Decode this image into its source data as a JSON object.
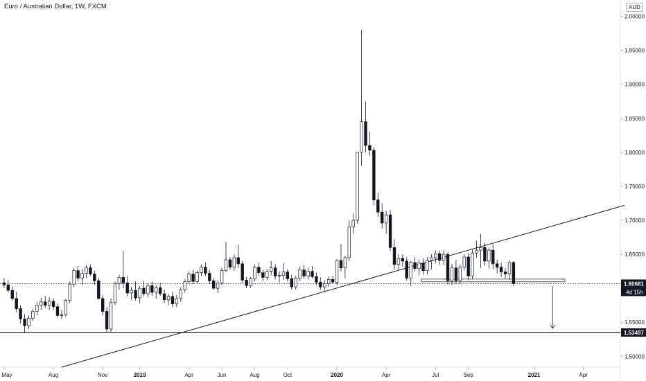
{
  "title": "Euro / Australian Dollar, 1W, FXCM",
  "currency": "AUD",
  "chart_data": {
    "type": "candlestick",
    "y_ticks": [
      "2.00000",
      "1.95000",
      "1.90000",
      "1.85000",
      "1.80000",
      "1.75000",
      "1.70000",
      "1.65000",
      "1.60000",
      "1.55000",
      "1.50000"
    ],
    "y_tick_values": [
      2.0,
      1.95,
      1.9,
      1.85,
      1.8,
      1.75,
      1.7,
      1.65,
      1.6,
      1.55,
      1.5
    ],
    "x_ticks": [
      "May",
      "Aug",
      "Nov",
      "2019",
      "Apr",
      "Jun",
      "Aug",
      "Oct",
      "2020",
      "Apr",
      "Jul",
      "Sep",
      "2021",
      "Apr"
    ],
    "x_tick_week": [
      0,
      12,
      24,
      33,
      45,
      53,
      61,
      69,
      81,
      93,
      105,
      113,
      129,
      141
    ],
    "ylim": [
      1.484,
      2.024
    ],
    "x_range_weeks": [
      -1,
      150
    ],
    "price_label": "1.60681",
    "price_value": 1.60681,
    "countdown_label": "4d 15h",
    "support_label": "1.53497",
    "support_value": 1.53497,
    "trendlines": [
      {
        "name": "rising-trendline",
        "w1": 14,
        "p1": 1.484,
        "w2": 151,
        "p2": 1.722
      }
    ],
    "consolidation_box": {
      "w1": 101.5,
      "w2": 136.5,
      "top": 1.6135,
      "bottom": 1.6095
    },
    "arrow": {
      "week": 133.5,
      "from": 1.603,
      "to": 1.541
    },
    "candles": [
      [
        1.608,
        1.615,
        1.6,
        1.605
      ],
      [
        1.605,
        1.612,
        1.594,
        1.597
      ],
      [
        1.597,
        1.603,
        1.582,
        1.585
      ],
      [
        1.585,
        1.595,
        1.565,
        1.57
      ],
      [
        1.57,
        1.575,
        1.548,
        1.555
      ],
      [
        1.555,
        1.562,
        1.534,
        1.545
      ],
      [
        1.545,
        1.56,
        1.54,
        1.556
      ],
      [
        1.556,
        1.57,
        1.552,
        1.566
      ],
      [
        1.566,
        1.58,
        1.56,
        1.575
      ],
      [
        1.575,
        1.586,
        1.568,
        1.58
      ],
      [
        1.58,
        1.589,
        1.571,
        1.575
      ],
      [
        1.575,
        1.587,
        1.568,
        1.581
      ],
      [
        1.581,
        1.585,
        1.568,
        1.573
      ],
      [
        1.573,
        1.578,
        1.557,
        1.56
      ],
      [
        1.56,
        1.568,
        1.555,
        1.561
      ],
      [
        1.561,
        1.585,
        1.558,
        1.582
      ],
      [
        1.582,
        1.61,
        1.578,
        1.606
      ],
      [
        1.606,
        1.63,
        1.602,
        1.626
      ],
      [
        1.626,
        1.633,
        1.61,
        1.615
      ],
      [
        1.615,
        1.628,
        1.605,
        1.622
      ],
      [
        1.622,
        1.634,
        1.615,
        1.63
      ],
      [
        1.63,
        1.635,
        1.618,
        1.621
      ],
      [
        1.621,
        1.626,
        1.605,
        1.611
      ],
      [
        1.611,
        1.615,
        1.583,
        1.585
      ],
      [
        1.585,
        1.59,
        1.56,
        1.566
      ],
      [
        1.566,
        1.572,
        1.535,
        1.54
      ],
      [
        1.54,
        1.585,
        1.536,
        1.579
      ],
      [
        1.579,
        1.61,
        1.575,
        1.607
      ],
      [
        1.607,
        1.62,
        1.598,
        1.616
      ],
      [
        1.616,
        1.655,
        1.6,
        1.608
      ],
      [
        1.608,
        1.618,
        1.588,
        1.593
      ],
      [
        1.593,
        1.602,
        1.583,
        1.597
      ],
      [
        1.597,
        1.61,
        1.582,
        1.586
      ],
      [
        1.586,
        1.603,
        1.578,
        1.6
      ],
      [
        1.6,
        1.611,
        1.588,
        1.592
      ],
      [
        1.592,
        1.607,
        1.587,
        1.604
      ],
      [
        1.604,
        1.61,
        1.589,
        1.594
      ],
      [
        1.594,
        1.605,
        1.585,
        1.601
      ],
      [
        1.601,
        1.608,
        1.589,
        1.592
      ],
      [
        1.592,
        1.598,
        1.578,
        1.583
      ],
      [
        1.583,
        1.592,
        1.575,
        1.588
      ],
      [
        1.588,
        1.595,
        1.572,
        1.577
      ],
      [
        1.577,
        1.59,
        1.572,
        1.585
      ],
      [
        1.585,
        1.602,
        1.58,
        1.598
      ],
      [
        1.598,
        1.613,
        1.594,
        1.61
      ],
      [
        1.61,
        1.625,
        1.607,
        1.621
      ],
      [
        1.621,
        1.627,
        1.606,
        1.61
      ],
      [
        1.61,
        1.626,
        1.606,
        1.623
      ],
      [
        1.623,
        1.635,
        1.618,
        1.631
      ],
      [
        1.631,
        1.638,
        1.618,
        1.622
      ],
      [
        1.622,
        1.627,
        1.606,
        1.611
      ],
      [
        1.611,
        1.615,
        1.598,
        1.6
      ],
      [
        1.6,
        1.612,
        1.593,
        1.608
      ],
      [
        1.608,
        1.63,
        1.604,
        1.626
      ],
      [
        1.626,
        1.668,
        1.624,
        1.642
      ],
      [
        1.642,
        1.646,
        1.627,
        1.631
      ],
      [
        1.631,
        1.65,
        1.626,
        1.645
      ],
      [
        1.645,
        1.664,
        1.63,
        1.636
      ],
      [
        1.636,
        1.64,
        1.608,
        1.612
      ],
      [
        1.612,
        1.617,
        1.6,
        1.604
      ],
      [
        1.604,
        1.617,
        1.6,
        1.614
      ],
      [
        1.614,
        1.635,
        1.61,
        1.631
      ],
      [
        1.631,
        1.638,
        1.619,
        1.623
      ],
      [
        1.623,
        1.627,
        1.611,
        1.616
      ],
      [
        1.616,
        1.628,
        1.612,
        1.625
      ],
      [
        1.625,
        1.64,
        1.619,
        1.63
      ],
      [
        1.63,
        1.635,
        1.613,
        1.618
      ],
      [
        1.618,
        1.625,
        1.609,
        1.619
      ],
      [
        1.619,
        1.637,
        1.612,
        1.624
      ],
      [
        1.624,
        1.628,
        1.61,
        1.614
      ],
      [
        1.614,
        1.62,
        1.598,
        1.602
      ],
      [
        1.602,
        1.618,
        1.598,
        1.615
      ],
      [
        1.615,
        1.632,
        1.611,
        1.627
      ],
      [
        1.627,
        1.634,
        1.614,
        1.618
      ],
      [
        1.618,
        1.63,
        1.613,
        1.625
      ],
      [
        1.625,
        1.633,
        1.614,
        1.617
      ],
      [
        1.617,
        1.623,
        1.605,
        1.609
      ],
      [
        1.609,
        1.616,
        1.598,
        1.602
      ],
      [
        1.602,
        1.612,
        1.596,
        1.607
      ],
      [
        1.607,
        1.617,
        1.602,
        1.613
      ],
      [
        1.613,
        1.618,
        1.606,
        1.609
      ],
      [
        1.609,
        1.643,
        1.605,
        1.641
      ],
      [
        1.641,
        1.665,
        1.625,
        1.63
      ],
      [
        1.63,
        1.648,
        1.615,
        1.645
      ],
      [
        1.645,
        1.7,
        1.64,
        1.69
      ],
      [
        1.69,
        1.71,
        1.68,
        1.7
      ],
      [
        1.7,
        1.8,
        1.695,
        1.8
      ],
      [
        1.8,
        1.98,
        1.78,
        1.845
      ],
      [
        1.845,
        1.875,
        1.8,
        1.81
      ],
      [
        1.81,
        1.83,
        1.795,
        1.803
      ],
      [
        1.803,
        1.808,
        1.722,
        1.73
      ],
      [
        1.73,
        1.74,
        1.705,
        1.712
      ],
      [
        1.712,
        1.725,
        1.688,
        1.696
      ],
      [
        1.696,
        1.714,
        1.68,
        1.708
      ],
      [
        1.708,
        1.715,
        1.655,
        1.66
      ],
      [
        1.66,
        1.672,
        1.627,
        1.635
      ],
      [
        1.635,
        1.65,
        1.628,
        1.644
      ],
      [
        1.644,
        1.65,
        1.632,
        1.64
      ],
      [
        1.64,
        1.646,
        1.611,
        1.615
      ],
      [
        1.615,
        1.64,
        1.603,
        1.638
      ],
      [
        1.638,
        1.646,
        1.625,
        1.629
      ],
      [
        1.629,
        1.642,
        1.619,
        1.637
      ],
      [
        1.637,
        1.644,
        1.62,
        1.626
      ],
      [
        1.626,
        1.646,
        1.62,
        1.641
      ],
      [
        1.641,
        1.65,
        1.628,
        1.645
      ],
      [
        1.645,
        1.656,
        1.637,
        1.651
      ],
      [
        1.651,
        1.655,
        1.635,
        1.641
      ],
      [
        1.641,
        1.656,
        1.634,
        1.65
      ],
      [
        1.65,
        1.653,
        1.606,
        1.611
      ],
      [
        1.611,
        1.636,
        1.605,
        1.63
      ],
      [
        1.63,
        1.642,
        1.606,
        1.611
      ],
      [
        1.611,
        1.635,
        1.606,
        1.631
      ],
      [
        1.631,
        1.65,
        1.626,
        1.646
      ],
      [
        1.646,
        1.652,
        1.612,
        1.618
      ],
      [
        1.618,
        1.657,
        1.613,
        1.652
      ],
      [
        1.652,
        1.67,
        1.645,
        1.656
      ],
      [
        1.656,
        1.68,
        1.63,
        1.66
      ],
      [
        1.66,
        1.667,
        1.633,
        1.64
      ],
      [
        1.64,
        1.66,
        1.629,
        1.656
      ],
      [
        1.656,
        1.665,
        1.628,
        1.636
      ],
      [
        1.636,
        1.642,
        1.622,
        1.631
      ],
      [
        1.631,
        1.638,
        1.617,
        1.624
      ],
      [
        1.624,
        1.63,
        1.614,
        1.621
      ],
      [
        1.621,
        1.641,
        1.612,
        1.638
      ],
      [
        1.638,
        1.64,
        1.603,
        1.607
      ]
    ]
  }
}
